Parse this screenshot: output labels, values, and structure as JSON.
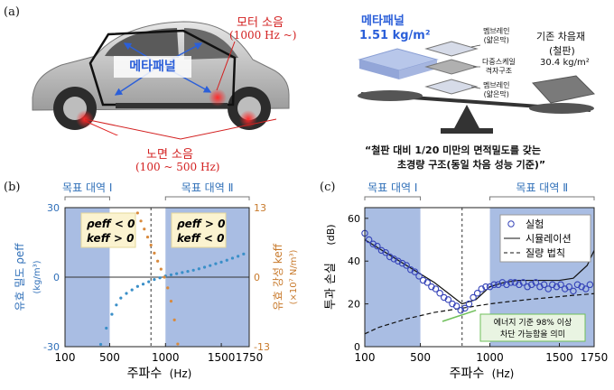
{
  "panel_a": {
    "label": "(a)",
    "car": {
      "metapanel_label": "메타패널",
      "motor_noise": "모터 소음",
      "motor_noise_range": "(1000 Hz ~)",
      "road_noise": "노면 소음",
      "road_noise_range": "(100 ~ 500 Hz)"
    },
    "scale": {
      "metapanel_title": "메타패널",
      "metapanel_density": "1.51 kg/m²",
      "layer_top": "멤브레인\n(얇은막)",
      "layer_mid": "다중스케일\n격자구조",
      "layer_bottom": "멤브레인\n(얇은막)",
      "existing_title": "기존 차음재",
      "existing_sub": "(철판)",
      "existing_density": "30.4 kg/m²",
      "caption_line1": "“철판 대비 1/20 미만의 면적밀도를 갖는",
      "caption_line2": "초경량 구조(동일 차음 성능 기준)”"
    }
  },
  "panel_b": {
    "label": "(b)",
    "band1": "목표 대역 Ⅰ",
    "band2": "목표 대역 Ⅱ",
    "box1_line1": "ρeff < 0",
    "box1_line2": "keff > 0",
    "box2_line1": "ρeff > 0",
    "box2_line2": "keff < 0",
    "left_axis_label": "유효 밀도 ρeff",
    "left_axis_unit": "(kg/m³)",
    "right_axis_label": "유효 강성 keff",
    "right_axis_unit": "(×10⁷ N/m³)",
    "xlabel": "주파수",
    "xunit": "(Hz)",
    "x_ticks": [
      "100",
      "500",
      "1000",
      "1500",
      "1750"
    ],
    "left_ticks": [
      "30",
      "0",
      "-30"
    ],
    "right_ticks": [
      "13",
      "0",
      "-13"
    ],
    "colors": {
      "density": "#3a8fc8",
      "stiffness": "#d98a3c",
      "band": "#a9bde3"
    }
  },
  "panel_c": {
    "label": "(c)",
    "band1": "목표 대역 Ⅰ",
    "band2": "목표 대역 Ⅱ",
    "ylabel": "투과 손실",
    "yunit": "(dB)",
    "xlabel": "주파수",
    "xunit": "(Hz)",
    "x_ticks": [
      "100",
      "500",
      "1000",
      "1500",
      "1750"
    ],
    "y_ticks": [
      "0",
      "20",
      "40",
      "60"
    ],
    "legend": [
      "실험",
      "시뮬레이션",
      "질량 법칙"
    ],
    "callout_line1": "에너지 기준 98% 이상",
    "callout_line2": "차단 가능함을 의미"
  },
  "chart_data": [
    {
      "type": "scatter",
      "series": [
        {
          "name": "ρeff",
          "axis": "left",
          "x": [
            420,
            470,
            520,
            560,
            600,
            650,
            700,
            750,
            800,
            850,
            900,
            950,
            1000,
            1050,
            1100,
            1150,
            1200,
            1250,
            1300,
            1350,
            1400,
            1450,
            1500,
            1550,
            1600,
            1650,
            1700
          ],
          "y": [
            -29,
            -22,
            -16,
            -12,
            -9,
            -7,
            -5.5,
            -4,
            -3,
            -2,
            -1,
            -0.3,
            0.5,
            1,
            1.5,
            2,
            2.5,
            3,
            3.6,
            4.3,
            5,
            5.8,
            6.5,
            7.3,
            8.2,
            9,
            10
          ]
        },
        {
          "name": "keff",
          "axis": "right",
          "x": [
            750,
            780,
            810,
            840,
            870,
            900,
            930,
            960,
            990,
            1020,
            1050,
            1080,
            1110
          ],
          "y": [
            12,
            10.5,
            9,
            7.5,
            6,
            4.5,
            3,
            1.5,
            0,
            -2,
            -4.5,
            -8,
            -12.5
          ]
        }
      ],
      "xlim": [
        100,
        1750
      ],
      "ylim_left": [
        -30,
        30
      ],
      "ylim_right": [
        -13,
        13
      ],
      "x_ticks": [
        100,
        500,
        1000,
        1500,
        1750
      ],
      "bands": [
        [
          100,
          500
        ],
        [
          1000,
          1750
        ]
      ],
      "divider_x": 870
    },
    {
      "type": "line",
      "series": [
        {
          "name": "실험",
          "style": "marker",
          "x": [
            100,
            130,
            160,
            190,
            220,
            250,
            280,
            310,
            340,
            370,
            400,
            430,
            460,
            490,
            520,
            550,
            580,
            610,
            640,
            670,
            700,
            730,
            760,
            790,
            820,
            850,
            880,
            910,
            940,
            970,
            1000,
            1030,
            1060,
            1090,
            1120,
            1150,
            1180,
            1210,
            1240,
            1270,
            1300,
            1330,
            1360,
            1390,
            1420,
            1450,
            1480,
            1510,
            1540,
            1570,
            1600,
            1630,
            1660,
            1690,
            1720
          ],
          "y": [
            53,
            50,
            48,
            47,
            45,
            44,
            42,
            41,
            40,
            39,
            38,
            36,
            35,
            33,
            31,
            30,
            28,
            27,
            25,
            23,
            22,
            20,
            19,
            17,
            18,
            20,
            23,
            25,
            27,
            28,
            28,
            29,
            29,
            30,
            29,
            30,
            30,
            29,
            30,
            28,
            29,
            30,
            28,
            29,
            27,
            29,
            28,
            29,
            27,
            28,
            26,
            29,
            28,
            27,
            29
          ]
        },
        {
          "name": "시뮬레이션",
          "style": "solid",
          "x": [
            100,
            200,
            300,
            400,
            500,
            600,
            700,
            800,
            900,
            1000,
            1100,
            1200,
            1300,
            1400,
            1500,
            1600,
            1700,
            1750
          ],
          "y": [
            50,
            46,
            42,
            38,
            34,
            30,
            25,
            20,
            22,
            28,
            30,
            31,
            31,
            31,
            31,
            32,
            38,
            45
          ]
        },
        {
          "name": "질량 법칙",
          "style": "dashed",
          "x": [
            100,
            200,
            300,
            400,
            500,
            600,
            700,
            800,
            900,
            1000,
            1100,
            1200,
            1300,
            1400,
            1500,
            1600,
            1700,
            1750
          ],
          "y": [
            6,
            9,
            11,
            13,
            14.5,
            16,
            17,
            18,
            19,
            20,
            20.8,
            21.5,
            22.2,
            22.8,
            23.4,
            24,
            24.5,
            24.8
          ]
        }
      ],
      "xlim": [
        100,
        1750
      ],
      "ylim": [
        0,
        65
      ],
      "x_ticks": [
        100,
        500,
        1000,
        1500,
        1750
      ],
      "y_ticks": [
        0,
        20,
        40,
        60
      ],
      "bands": [
        [
          100,
          500
        ],
        [
          1000,
          1750
        ]
      ],
      "divider_x": 800
    }
  ]
}
